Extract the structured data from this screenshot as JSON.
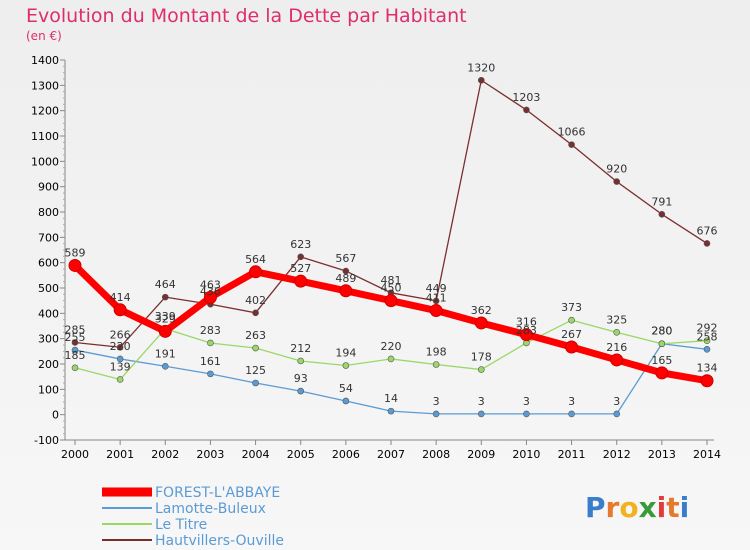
{
  "chart_data": {
    "type": "line",
    "title": "Evolution du Montant de la Dette par Habitant",
    "subtitle": "(en €)",
    "xlabel": "",
    "ylabel": "",
    "ylim": [
      -100,
      1400
    ],
    "yticks": [
      -100,
      0,
      100,
      200,
      300,
      400,
      500,
      600,
      700,
      800,
      900,
      1000,
      1100,
      1200,
      1300,
      1400
    ],
    "categories": [
      "2000",
      "2001",
      "2002",
      "2003",
      "2004",
      "2005",
      "2006",
      "2007",
      "2008",
      "2009",
      "2010",
      "2011",
      "2012",
      "2013",
      "2014"
    ],
    "grid": false,
    "legend_position": "bottom-left",
    "series": [
      {
        "name": "Lamotte-Buleux",
        "color": "#5b9bd5",
        "values": [
          255,
          220,
          191,
          161,
          125,
          93,
          54,
          14,
          3,
          3,
          3,
          3,
          3,
          280,
          258
        ]
      },
      {
        "name": "Le Titre",
        "color": "#99d866",
        "values": [
          185,
          139,
          339,
          283,
          263,
          212,
          194,
          220,
          198,
          178,
          283,
          373,
          325,
          280,
          292
        ]
      },
      {
        "name": "Hautvillers-Ouville",
        "color": "#7a2f2f",
        "values": [
          285,
          266,
          464,
          436,
          402,
          623,
          567,
          481,
          449,
          1320,
          1203,
          1066,
          920,
          791,
          676
        ]
      },
      {
        "name": "FOREST-L'ABBAYE",
        "color": "#ff0000",
        "values": [
          589,
          414,
          329,
          463,
          564,
          527,
          489,
          450,
          411,
          362,
          316,
          267,
          216,
          165,
          134
        ]
      }
    ],
    "data_labels": {
      "Lamotte-Buleux": [
        "255",
        "220",
        "191",
        "161",
        "125",
        "93",
        "54",
        "14",
        "3",
        "3",
        "3",
        "3",
        "3",
        "280",
        "258"
      ],
      "Le Titre": [
        "185",
        "139",
        "339",
        "283",
        "263",
        "212",
        "194",
        "220",
        "198",
        "178",
        "283",
        "373",
        "325",
        "280",
        "292"
      ],
      "Hautvillers-Ouville": [
        "285",
        "266",
        "464",
        "436",
        "402",
        "623",
        "567",
        "481",
        "449",
        "1320",
        "1203",
        "1066",
        "920",
        "791",
        "676"
      ],
      "FOREST-L'ABBAYE": [
        "589",
        "414",
        "329",
        "463",
        "564",
        "527",
        "489",
        "450",
        "411",
        "362",
        "316",
        "267",
        "216",
        "165",
        "134"
      ]
    },
    "legend": [
      {
        "name": "FOREST-L'ABBAYE",
        "color": "#ff0000"
      },
      {
        "name": "Lamotte-Buleux",
        "color": "#5b9bd5"
      },
      {
        "name": "Le Titre",
        "color": "#99d866"
      },
      {
        "name": "Hautvillers-Ouville",
        "color": "#7a2f2f"
      }
    ],
    "legend_text_color": "#5b9bd5"
  },
  "watermark": {
    "text": "Proxiti"
  }
}
